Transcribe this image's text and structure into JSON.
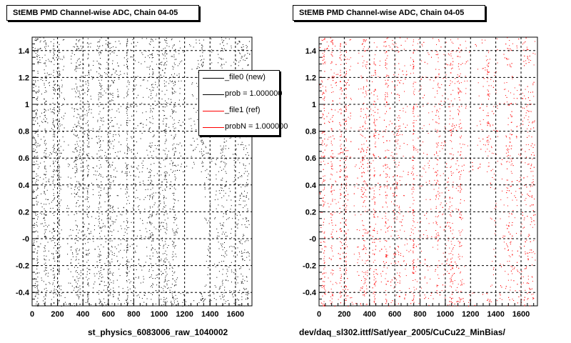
{
  "chart_data": [
    {
      "type": "scatter",
      "title": "StEMB PMD Channel-wise ADC, Chain 04-05",
      "xlabel": "st_physics_6083006_raw_1040002",
      "ylabel": "",
      "xlim": [
        0,
        1730
      ],
      "ylim": [
        -0.5,
        1.5
      ],
      "x_ticks": [
        "0",
        "200",
        "400",
        "600",
        "800",
        "1000",
        "1200",
        "1400",
        "1600"
      ],
      "y_ticks": [
        "-0.4",
        "-0.2",
        "-0",
        "0.2",
        "0.4",
        "0.6",
        "0.8",
        "1",
        "1.2",
        "1.4"
      ],
      "grid": true,
      "marker_color": "#000000",
      "legend": {
        "placement": "top-right",
        "entries": [
          {
            "label": "_file0 (new)",
            "color": "#000000"
          },
          {
            "label": "prob = 1.000000",
            "color": "#000000"
          },
          {
            "label": "_file1 (ref)",
            "color": "#ff0000"
          },
          {
            "label": "probN = 1.000000",
            "color": "#ff0000"
          }
        ]
      }
    },
    {
      "type": "scatter",
      "title": "StEMB PMD Channel-wise ADC, Chain 04-05",
      "xlabel": "dev/daq_sl302.ittf/Sat/year_2005/CuCu22_MinBias/",
      "ylabel": "",
      "xlim": [
        0,
        1730
      ],
      "ylim": [
        -0.5,
        1.5
      ],
      "x_ticks": [
        "0",
        "200",
        "400",
        "600",
        "800",
        "1000",
        "1200",
        "1400",
        "1600"
      ],
      "y_ticks": [
        "-0.4",
        "-0.2",
        "-0",
        "0.2",
        "0.4",
        "0.6",
        "0.8",
        "1",
        "1.2",
        "1.4"
      ],
      "grid": true,
      "marker_color": "#ff0000"
    }
  ]
}
